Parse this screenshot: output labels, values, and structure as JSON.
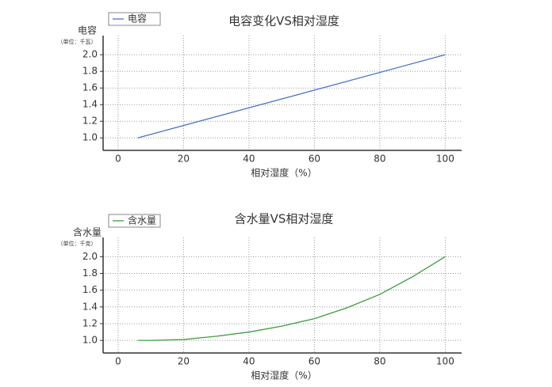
{
  "chart_data": [
    {
      "type": "line",
      "title": "电容变化VS相对湿度",
      "y_label": "电容",
      "y_unit": "（单位：千瓦）",
      "x_label": "相对湿度（%）",
      "x": [
        6,
        100
      ],
      "series": [
        {
          "name": "电容",
          "color": "#4a72c8",
          "values": [
            1.0,
            2.0
          ]
        }
      ],
      "xlim": [
        -4.6,
        105
      ],
      "ylim": [
        0.85,
        2.23
      ],
      "xticks": [
        0,
        20,
        40,
        60,
        80,
        100
      ],
      "yticks": [
        {
          "value": 1,
          "label": "1.0"
        },
        {
          "value": 1.2,
          "label": "1.2"
        },
        {
          "value": 1.4,
          "label": "1.4"
        },
        {
          "value": 1.6,
          "label": "1.6"
        },
        {
          "value": 1.8,
          "label": "1.8"
        },
        {
          "value": 2,
          "label": "2.0"
        }
      ],
      "grid": true,
      "legend": "upper left"
    },
    {
      "type": "line",
      "title": "含水量VS相对湿度",
      "y_label": "含水量",
      "y_unit": "（单位：千克）",
      "x_label": "相对湿度（%）",
      "x": [
        6,
        10,
        20,
        30,
        40,
        50,
        60,
        70,
        80,
        90,
        100
      ],
      "series": [
        {
          "name": "含水量",
          "color": "#3a9e3a",
          "values": [
            1.0,
            1.0,
            1.01,
            1.05,
            1.1,
            1.17,
            1.26,
            1.39,
            1.55,
            1.76,
            2.0
          ]
        }
      ],
      "xlim": [
        -4.6,
        105
      ],
      "ylim": [
        0.85,
        2.23
      ],
      "xticks": [
        0,
        20,
        40,
        60,
        80,
        100
      ],
      "yticks": [
        {
          "value": 1,
          "label": "1.0"
        },
        {
          "value": 1.2,
          "label": "1.2"
        },
        {
          "value": 1.4,
          "label": "1.4"
        },
        {
          "value": 1.6,
          "label": "1.6"
        },
        {
          "value": 1.8,
          "label": "1.8"
        },
        {
          "value": 2,
          "label": "2.0"
        }
      ],
      "grid": true,
      "legend": "upper left"
    }
  ]
}
